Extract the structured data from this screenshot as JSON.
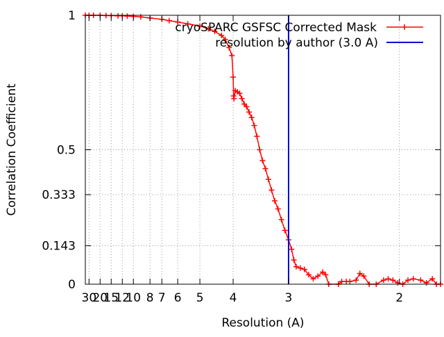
{
  "chart_data": {
    "type": "line",
    "xlabel": "Resolution (A)",
    "ylabel": "Correlation Coefficient",
    "x_scale": "reciprocal",
    "xlim": [
      36,
      1.78
    ],
    "ylim": [
      0,
      1
    ],
    "xticks": [
      {
        "value": 30,
        "label": "30"
      },
      {
        "value": 20,
        "label": "20"
      },
      {
        "value": 15,
        "label": "15"
      },
      {
        "value": 12,
        "label": "12"
      },
      {
        "value": 10,
        "label": "10"
      },
      {
        "value": 8,
        "label": "8"
      },
      {
        "value": 7,
        "label": "7"
      },
      {
        "value": 6,
        "label": "6"
      },
      {
        "value": 5,
        "label": "5"
      },
      {
        "value": 4,
        "label": "4"
      },
      {
        "value": 3,
        "label": "3"
      },
      {
        "value": 2,
        "label": "2"
      }
    ],
    "yticks": [
      {
        "value": 0,
        "label": "0"
      },
      {
        "value": 0.143,
        "label": "0.143"
      },
      {
        "value": 0.333,
        "label": "0.333"
      },
      {
        "value": 0.5,
        "label": "0.5"
      },
      {
        "value": 1,
        "label": "1"
      }
    ],
    "grid": true,
    "legend_position": "top-right",
    "series": [
      {
        "name": "cryoSPARC GSFSC Corrected Mask",
        "color": "#ff0000",
        "marker": "plus",
        "points": [
          [
            36,
            1.0
          ],
          [
            30,
            1.0
          ],
          [
            25,
            1.0
          ],
          [
            20,
            1.0
          ],
          [
            17,
            0.999
          ],
          [
            15,
            0.999
          ],
          [
            13,
            0.998
          ],
          [
            12,
            0.998
          ],
          [
            11,
            0.997
          ],
          [
            10,
            0.996
          ],
          [
            9,
            0.994
          ],
          [
            8,
            0.99
          ],
          [
            7,
            0.985
          ],
          [
            6.5,
            0.98
          ],
          [
            6,
            0.975
          ],
          [
            5.5,
            0.968
          ],
          [
            5,
            0.96
          ],
          [
            4.7,
            0.95
          ],
          [
            4.5,
            0.94
          ],
          [
            4.3,
            0.925
          ],
          [
            4.2,
            0.91
          ],
          [
            4.1,
            0.88
          ],
          [
            4.03,
            0.85
          ],
          [
            4.0,
            0.77
          ],
          [
            3.99,
            0.7
          ],
          [
            3.98,
            0.69
          ],
          [
            3.95,
            0.72
          ],
          [
            3.9,
            0.715
          ],
          [
            3.85,
            0.71
          ],
          [
            3.8,
            0.69
          ],
          [
            3.75,
            0.67
          ],
          [
            3.7,
            0.66
          ],
          [
            3.65,
            0.64
          ],
          [
            3.6,
            0.62
          ],
          [
            3.55,
            0.59
          ],
          [
            3.5,
            0.55
          ],
          [
            3.45,
            0.5
          ],
          [
            3.4,
            0.46
          ],
          [
            3.35,
            0.43
          ],
          [
            3.3,
            0.39
          ],
          [
            3.25,
            0.35
          ],
          [
            3.2,
            0.31
          ],
          [
            3.15,
            0.28
          ],
          [
            3.1,
            0.24
          ],
          [
            3.05,
            0.2
          ],
          [
            3.0,
            0.165
          ],
          [
            2.96,
            0.13
          ],
          [
            2.93,
            0.09
          ],
          [
            2.9,
            0.065
          ],
          [
            2.85,
            0.06
          ],
          [
            2.8,
            0.055
          ],
          [
            2.75,
            0.035
          ],
          [
            2.7,
            0.02
          ],
          [
            2.65,
            0.03
          ],
          [
            2.6,
            0.045
          ],
          [
            2.57,
            0.035
          ],
          [
            2.54,
            0.0
          ],
          [
            2.45,
            0.0
          ],
          [
            2.42,
            0.01
          ],
          [
            2.38,
            0.01
          ],
          [
            2.35,
            0.01
          ],
          [
            2.3,
            0.015
          ],
          [
            2.27,
            0.04
          ],
          [
            2.24,
            0.03
          ],
          [
            2.2,
            0.0
          ],
          [
            2.15,
            0.0
          ],
          [
            2.1,
            0.015
          ],
          [
            2.07,
            0.02
          ],
          [
            2.04,
            0.015
          ],
          [
            2.01,
            0.005
          ],
          [
            1.98,
            0.0
          ],
          [
            1.95,
            0.015
          ],
          [
            1.92,
            0.02
          ],
          [
            1.88,
            0.015
          ],
          [
            1.85,
            0.005
          ],
          [
            1.82,
            0.02
          ],
          [
            1.8,
            0.0
          ],
          [
            1.78,
            0.0
          ]
        ]
      },
      {
        "name": "resolution by author (3.0 A)",
        "color": "#0000cc",
        "vertical_at": 3.0
      }
    ]
  }
}
